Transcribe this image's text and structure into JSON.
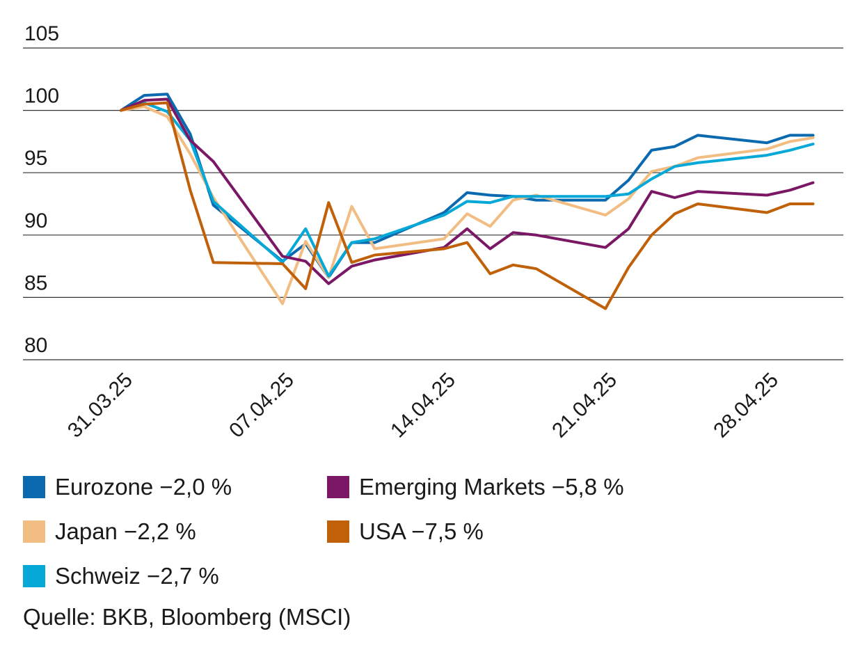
{
  "chart_data": {
    "type": "line",
    "x_ticks": [
      "31.03.25",
      "07.04.25",
      "14.04.25",
      "21.04.25",
      "28.04.25"
    ],
    "y_ticks": [
      105,
      100,
      95,
      90,
      85,
      80
    ],
    "ylim": [
      80,
      105
    ],
    "grid": "horizontal",
    "series": [
      {
        "name": "Eurozone −2,0 %",
        "color": "#0b6aaf",
        "points": [
          [
            "31.03.25",
            100
          ],
          [
            "01.04.25",
            101.2
          ],
          [
            "02.04.25",
            101.3
          ],
          [
            "03.04.25",
            98.1
          ],
          [
            "04.04.25",
            92.4
          ],
          [
            "07.04.25",
            87.9
          ],
          [
            "08.04.25",
            89.3
          ],
          [
            "09.04.25",
            86.6
          ],
          [
            "10.04.25",
            89.4
          ],
          [
            "11.04.25",
            89.4
          ],
          [
            "14.04.25",
            91.8
          ],
          [
            "15.04.25",
            93.4
          ],
          [
            "16.04.25",
            93.2
          ],
          [
            "17.04.25",
            93.1
          ],
          [
            "18.04.25",
            92.8
          ],
          [
            "21.04.25",
            92.8
          ],
          [
            "22.04.25",
            94.4
          ],
          [
            "23.04.25",
            96.8
          ],
          [
            "24.04.25",
            97.1
          ],
          [
            "25.04.25",
            98.0
          ],
          [
            "28.04.25",
            97.4
          ],
          [
            "29.04.25",
            98.0
          ],
          [
            "30.04.25",
            98.0
          ]
        ]
      },
      {
        "name": "Japan −2,2 %",
        "color": "#f2bd82",
        "points": [
          [
            "31.03.25",
            100
          ],
          [
            "01.04.25",
            100.3
          ],
          [
            "02.04.25",
            99.5
          ],
          [
            "03.04.25",
            96.5
          ],
          [
            "04.04.25",
            93.0
          ],
          [
            "07.04.25",
            84.5
          ],
          [
            "08.04.25",
            89.5
          ],
          [
            "09.04.25",
            86.6
          ],
          [
            "10.04.25",
            92.3
          ],
          [
            "11.04.25",
            88.9
          ],
          [
            "14.04.25",
            89.7
          ],
          [
            "15.04.25",
            91.7
          ],
          [
            "16.04.25",
            90.7
          ],
          [
            "17.04.25",
            92.8
          ],
          [
            "18.04.25",
            93.2
          ],
          [
            "21.04.25",
            91.6
          ],
          [
            "22.04.25",
            92.9
          ],
          [
            "23.04.25",
            95.1
          ],
          [
            "24.04.25",
            95.5
          ],
          [
            "25.04.25",
            96.2
          ],
          [
            "28.04.25",
            96.9
          ],
          [
            "29.04.25",
            97.5
          ],
          [
            "30.04.25",
            97.8
          ]
        ]
      },
      {
        "name": "Schweiz −2,7 %",
        "color": "#06a8d8",
        "points": [
          [
            "31.03.25",
            100
          ],
          [
            "01.04.25",
            100.6
          ],
          [
            "02.04.25",
            99.9
          ],
          [
            "03.04.25",
            97.6
          ],
          [
            "04.04.25",
            92.7
          ],
          [
            "07.04.25",
            87.8
          ],
          [
            "08.04.25",
            90.5
          ],
          [
            "09.04.25",
            86.7
          ],
          [
            "10.04.25",
            89.4
          ],
          [
            "11.04.25",
            89.7
          ],
          [
            "14.04.25",
            91.6
          ],
          [
            "15.04.25",
            92.7
          ],
          [
            "16.04.25",
            92.6
          ],
          [
            "17.04.25",
            93.1
          ],
          [
            "18.04.25",
            93.1
          ],
          [
            "21.04.25",
            93.1
          ],
          [
            "22.04.25",
            93.3
          ],
          [
            "23.04.25",
            94.5
          ],
          [
            "24.04.25",
            95.5
          ],
          [
            "25.04.25",
            95.8
          ],
          [
            "28.04.25",
            96.4
          ],
          [
            "29.04.25",
            96.8
          ],
          [
            "30.04.25",
            97.3
          ]
        ]
      },
      {
        "name": "Emerging Markets −5,8 %",
        "color": "#7b1866",
        "points": [
          [
            "31.03.25",
            100
          ],
          [
            "01.04.25",
            100.8
          ],
          [
            "02.04.25",
            100.9
          ],
          [
            "03.04.25",
            97.6
          ],
          [
            "04.04.25",
            95.9
          ],
          [
            "07.04.25",
            88.3
          ],
          [
            "08.04.25",
            87.9
          ],
          [
            "09.04.25",
            86.1
          ],
          [
            "10.04.25",
            87.5
          ],
          [
            "11.04.25",
            88.0
          ],
          [
            "14.04.25",
            89.0
          ],
          [
            "15.04.25",
            90.5
          ],
          [
            "16.04.25",
            88.9
          ],
          [
            "17.04.25",
            90.2
          ],
          [
            "18.04.25",
            90.0
          ],
          [
            "21.04.25",
            89.0
          ],
          [
            "22.04.25",
            90.5
          ],
          [
            "23.04.25",
            93.5
          ],
          [
            "24.04.25",
            93.0
          ],
          [
            "25.04.25",
            93.5
          ],
          [
            "28.04.25",
            93.2
          ],
          [
            "29.04.25",
            93.6
          ],
          [
            "30.04.25",
            94.2
          ]
        ]
      },
      {
        "name": "USA −7,5 %",
        "color": "#c06008",
        "points": [
          [
            "31.03.25",
            100
          ],
          [
            "01.04.25",
            100.5
          ],
          [
            "02.04.25",
            100.6
          ],
          [
            "03.04.25",
            93.6
          ],
          [
            "04.04.25",
            87.8
          ],
          [
            "07.04.25",
            87.7
          ],
          [
            "08.04.25",
            85.7
          ],
          [
            "09.04.25",
            92.6
          ],
          [
            "10.04.25",
            87.8
          ],
          [
            "11.04.25",
            88.4
          ],
          [
            "14.04.25",
            88.9
          ],
          [
            "15.04.25",
            89.4
          ],
          [
            "16.04.25",
            86.9
          ],
          [
            "17.04.25",
            87.6
          ],
          [
            "18.04.25",
            87.3
          ],
          [
            "21.04.25",
            84.1
          ],
          [
            "22.04.25",
            87.4
          ],
          [
            "23.04.25",
            90.0
          ],
          [
            "24.04.25",
            91.7
          ],
          [
            "25.04.25",
            92.5
          ],
          [
            "28.04.25",
            91.8
          ],
          [
            "29.04.25",
            92.5
          ],
          [
            "30.04.25",
            92.5
          ]
        ]
      }
    ]
  },
  "legend": [
    {
      "label": "Eurozone −2,0 %",
      "color": "#0b6aaf"
    },
    {
      "label": "Emerging Markets −5,8 %",
      "color": "#7b1866"
    },
    {
      "label": "Japan −2,2 %",
      "color": "#f2bd82"
    },
    {
      "label": "USA −7,5 %",
      "color": "#c06008"
    },
    {
      "label": "Schweiz −2,7 %",
      "color": "#06a8d8"
    }
  ],
  "source": "Quelle: BKB, Bloomberg (MSCI)"
}
